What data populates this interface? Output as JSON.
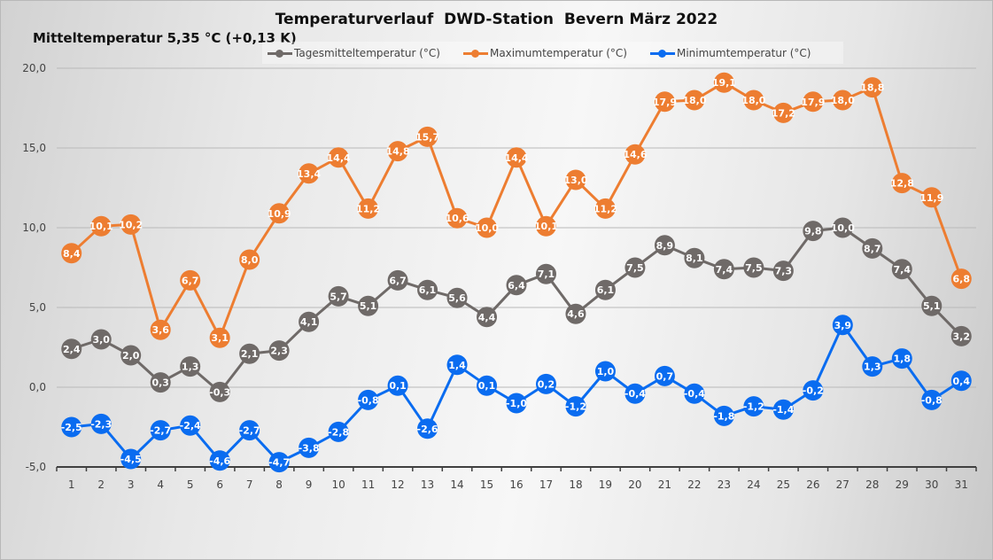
{
  "chart_data": {
    "type": "line",
    "title": "Temperaturverlauf  DWD-Station  Bevern März 2022",
    "subtitle": "Mitteltemperatur 5,35 °C (+0,13 K)",
    "xlabel": "",
    "ylabel": "",
    "ylim": [
      -5,
      20
    ],
    "yticks": [
      20,
      15,
      10,
      5,
      0,
      -5
    ],
    "ytick_labels": [
      "20,0",
      "15,0",
      "10,0",
      "5,0",
      "0,0",
      "-5,0"
    ],
    "grid": true,
    "legend_position": "top",
    "categories": [
      "1",
      "2",
      "3",
      "4",
      "5",
      "6",
      "7",
      "8",
      "9",
      "10",
      "11",
      "12",
      "13",
      "14",
      "15",
      "16",
      "17",
      "18",
      "19",
      "20",
      "21",
      "22",
      "23",
      "24",
      "25",
      "26",
      "27",
      "28",
      "29",
      "30",
      "31"
    ],
    "series": [
      {
        "name": "Tagesmitteltemperatur (°C)",
        "color": "#6f6a68",
        "values": [
          2.4,
          3.0,
          2.0,
          0.3,
          1.3,
          -0.3,
          2.1,
          2.3,
          4.1,
          5.7,
          5.1,
          6.7,
          6.1,
          5.6,
          4.4,
          6.4,
          7.1,
          4.6,
          6.1,
          7.5,
          8.9,
          8.1,
          7.4,
          7.5,
          7.3,
          9.8,
          10.0,
          8.7,
          7.4,
          5.1,
          3.2
        ],
        "labels": [
          "2,4",
          "3,0",
          "2,0",
          "0,3",
          "1,3",
          "-0,3",
          "2,1",
          "2,3",
          "4,1",
          "5,7",
          "5,1",
          "6,7",
          "6,1",
          "5,6",
          "4,4",
          "6,4",
          "7,1",
          "4,6",
          "6,1",
          "7,5",
          "8,9",
          "8,1",
          "7,4",
          "7,5",
          "7,3",
          "9,8",
          "10,0",
          "8,7",
          "7,4",
          "5,1",
          "3,2"
        ]
      },
      {
        "name": "Maximumtemperatur (°C)",
        "color": "#ed7d31",
        "values": [
          8.4,
          10.1,
          10.2,
          3.6,
          6.7,
          3.1,
          8.0,
          10.9,
          13.4,
          14.4,
          11.2,
          14.8,
          15.7,
          10.6,
          10.0,
          14.4,
          10.1,
          13.0,
          11.2,
          14.6,
          17.9,
          18.0,
          19.1,
          18.0,
          17.2,
          17.9,
          18.0,
          18.8,
          12.8,
          11.9,
          6.8
        ],
        "labels": [
          "8,4",
          "10,1",
          "10,2",
          "3,6",
          "6,7",
          "3,1",
          "8,0",
          "10,9",
          "13,4",
          "14,4",
          "11,2",
          "14,8",
          "15,7",
          "10,6",
          "10,0",
          "14,4",
          "10,1",
          "13,0",
          "11,2",
          "14,6",
          "17,9",
          "18,0",
          "19,1",
          "18,0",
          "17,2",
          "17,9",
          "18,0",
          "18,8",
          "12,8",
          "11,9",
          "6,8"
        ]
      },
      {
        "name": "Minimumtemperatur (°C)",
        "color": "#0a6cf0",
        "values": [
          -2.5,
          -2.3,
          -4.5,
          -2.7,
          -2.4,
          -4.6,
          -2.7,
          -4.7,
          -3.8,
          -2.8,
          -0.8,
          0.1,
          -2.6,
          1.4,
          0.1,
          -1.0,
          0.2,
          -1.2,
          1.0,
          -0.4,
          0.7,
          -0.4,
          -1.8,
          -1.2,
          -1.4,
          -0.2,
          3.9,
          1.3,
          1.8,
          -0.8,
          0.4
        ],
        "labels": [
          "-2,5",
          "-2,3",
          "-4,5",
          "-2,7",
          "-2,4",
          "-4,6",
          "-2,7",
          "-4,7",
          "-3,8",
          "-2,8",
          "-0,8",
          "0,1",
          "-2,6",
          "1,4",
          "0,1",
          "-1,0",
          "0,2",
          "-1,2",
          "1,0",
          "-0,4",
          "0,7",
          "-0,4",
          "-1,8",
          "-1,2",
          "-1,4",
          "-0,2",
          "3,9",
          "1,3",
          "1,8",
          "-0,8",
          "0,4"
        ]
      }
    ]
  }
}
